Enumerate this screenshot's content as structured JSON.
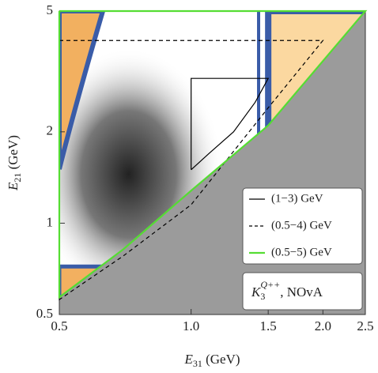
{
  "chart_data": {
    "type": "line",
    "log_x": true,
    "log_y": true,
    "xlim": [
      0.5,
      2.5
    ],
    "ylim": [
      0.5,
      5
    ],
    "xticks": [
      0.5,
      {
        "value": 1,
        "label": "1.0"
      },
      1.5,
      {
        "value": 2,
        "label": "2.0"
      },
      2.5
    ],
    "yticks": [
      0.5,
      1,
      2,
      5
    ],
    "x_label": {
      "symbol": "E",
      "subscript": "31",
      "text": " (GeV)"
    },
    "y_label": {
      "symbol": "E",
      "subscript": "21",
      "text": " (GeV)"
    },
    "annotation": {
      "symbol": "K",
      "subscript": "3",
      "superscript": "Q++",
      "text": ", NOvA"
    },
    "legend": "lower right",
    "series": [
      {
        "name": "(1−3) GeV",
        "color": "#000000",
        "dash": false,
        "x": [
          1,
          1,
          1.5,
          1.4,
          1.25,
          1.1,
          1
        ],
        "values": [
          1.5,
          3,
          3,
          2.5,
          2,
          1.7,
          1.5
        ]
      },
      {
        "name": "(0.5−4) GeV",
        "color": "#000000",
        "dash": true,
        "x": [
          0.5,
          2,
          1.5,
          1,
          0.7,
          0.5,
          0.5
        ],
        "values": [
          4,
          4,
          2.4,
          1.15,
          0.78,
          0.56,
          4
        ]
      },
      {
        "name": "(0.5−5) GeV",
        "color": "#55dd33",
        "dash": false,
        "x": [
          0.5,
          2.5,
          1.5,
          1,
          0.7,
          0.5,
          0.5
        ],
        "values": [
          5,
          5,
          2.1,
          1.28,
          0.82,
          0.57,
          5
        ]
      }
    ]
  }
}
